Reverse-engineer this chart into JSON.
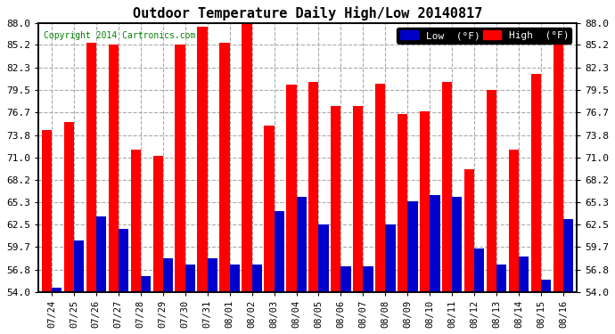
{
  "title": "Outdoor Temperature Daily High/Low 20140817",
  "copyright": "Copyright 2014 Cartronics.com",
  "dates": [
    "07/24",
    "07/25",
    "07/26",
    "07/27",
    "07/28",
    "07/29",
    "07/30",
    "07/31",
    "08/01",
    "08/02",
    "08/03",
    "08/04",
    "08/05",
    "08/06",
    "08/07",
    "08/08",
    "08/09",
    "08/10",
    "08/11",
    "08/12",
    "08/13",
    "08/14",
    "08/15",
    "08/16"
  ],
  "highs": [
    74.5,
    75.5,
    85.5,
    85.2,
    72.0,
    71.2,
    85.2,
    87.5,
    85.5,
    88.0,
    75.0,
    80.2,
    80.5,
    77.5,
    77.5,
    80.3,
    76.5,
    76.8,
    80.5,
    69.5,
    79.5,
    72.0,
    81.5,
    86.2
  ],
  "lows": [
    54.5,
    60.5,
    63.5,
    62.0,
    56.0,
    58.2,
    57.5,
    58.2,
    57.5,
    57.5,
    64.2,
    66.0,
    62.5,
    57.2,
    57.2,
    62.5,
    65.5,
    66.2,
    66.0,
    59.5,
    57.5,
    58.5,
    55.5,
    63.2
  ],
  "high_color": "#FF0000",
  "low_color": "#0000CC",
  "background_color": "#FFFFFF",
  "grid_color": "#AAAAAA",
  "yticks": [
    54.0,
    56.8,
    59.7,
    62.5,
    65.3,
    68.2,
    71.0,
    73.8,
    76.7,
    79.5,
    82.3,
    85.2,
    88.0
  ],
  "ymin": 54.0,
  "ymax": 88.0,
  "legend_low_label": "Low  (°F)",
  "legend_high_label": "High  (°F)"
}
